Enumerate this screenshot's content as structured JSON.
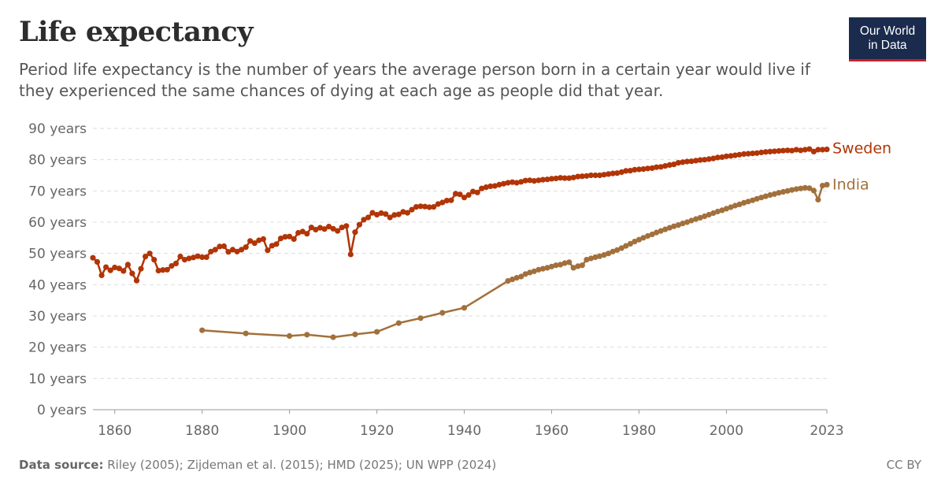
{
  "header": {
    "title": "Life expectancy",
    "subtitle": "Period life expectancy is the number of years the average person born in a certain year would live if they experienced the same chances of dying at each age as people did that year."
  },
  "logo": {
    "line1": "Our World",
    "line2": "in Data"
  },
  "footer": {
    "source_label": "Data source:",
    "source_text": "Riley (2005); Zijdeman et al. (2015); HMD (2025); UN WPP (2024)",
    "license": "CC BY"
  },
  "chart_data": {
    "type": "line",
    "xlim": [
      1855,
      2023
    ],
    "ylim": [
      0,
      90
    ],
    "x_ticks": [
      {
        "value": 1860,
        "label": "1860"
      },
      {
        "value": 1880,
        "label": "1880"
      },
      {
        "value": 1900,
        "label": "1900"
      },
      {
        "value": 1920,
        "label": "1920"
      },
      {
        "value": 1940,
        "label": "1940"
      },
      {
        "value": 1960,
        "label": "1960"
      },
      {
        "value": 1980,
        "label": "1980"
      },
      {
        "value": 2000,
        "label": "2000"
      },
      {
        "value": 2023,
        "label": "2023"
      }
    ],
    "y_ticks": [
      {
        "value": 0,
        "label": "0 years"
      },
      {
        "value": 10,
        "label": "10 years"
      },
      {
        "value": 20,
        "label": "20 years"
      },
      {
        "value": 30,
        "label": "30 years"
      },
      {
        "value": 40,
        "label": "40 years"
      },
      {
        "value": 50,
        "label": "50 years"
      },
      {
        "value": 60,
        "label": "60 years"
      },
      {
        "value": 70,
        "label": "70 years"
      },
      {
        "value": 80,
        "label": "80 years"
      },
      {
        "value": 90,
        "label": "90 years"
      }
    ],
    "grid": true,
    "series": [
      {
        "name": "Sweden",
        "color": "#b13507",
        "points": [
          [
            1855,
            48.6
          ],
          [
            1856,
            47.3
          ],
          [
            1857,
            43.0
          ],
          [
            1858,
            45.6
          ],
          [
            1859,
            44.6
          ],
          [
            1860,
            45.5
          ],
          [
            1861,
            45.2
          ],
          [
            1862,
            44.4
          ],
          [
            1863,
            46.4
          ],
          [
            1864,
            43.6
          ],
          [
            1865,
            41.3
          ],
          [
            1866,
            45.1
          ],
          [
            1867,
            49.0
          ],
          [
            1868,
            50.0
          ],
          [
            1869,
            48.0
          ],
          [
            1870,
            44.5
          ],
          [
            1871,
            44.7
          ],
          [
            1872,
            44.8
          ],
          [
            1873,
            46.0
          ],
          [
            1874,
            46.8
          ],
          [
            1875,
            49.0
          ],
          [
            1876,
            48.0
          ],
          [
            1877,
            48.4
          ],
          [
            1878,
            48.7
          ],
          [
            1879,
            49.1
          ],
          [
            1880,
            48.8
          ],
          [
            1881,
            48.8
          ],
          [
            1882,
            50.6
          ],
          [
            1883,
            51.2
          ],
          [
            1884,
            52.2
          ],
          [
            1885,
            52.3
          ],
          [
            1886,
            50.5
          ],
          [
            1887,
            51.2
          ],
          [
            1888,
            50.6
          ],
          [
            1889,
            51.2
          ],
          [
            1890,
            52.0
          ],
          [
            1891,
            54.0
          ],
          [
            1892,
            53.3
          ],
          [
            1893,
            54.2
          ],
          [
            1894,
            54.6
          ],
          [
            1895,
            51.0
          ],
          [
            1896,
            52.5
          ],
          [
            1897,
            53.0
          ],
          [
            1898,
            54.8
          ],
          [
            1899,
            55.3
          ],
          [
            1900,
            55.4
          ],
          [
            1901,
            54.6
          ],
          [
            1902,
            56.6
          ],
          [
            1903,
            57.0
          ],
          [
            1904,
            56.3
          ],
          [
            1905,
            58.3
          ],
          [
            1906,
            57.6
          ],
          [
            1907,
            58.2
          ],
          [
            1908,
            57.8
          ],
          [
            1909,
            58.6
          ],
          [
            1910,
            57.9
          ],
          [
            1911,
            57.2
          ],
          [
            1912,
            58.3
          ],
          [
            1913,
            58.8
          ],
          [
            1914,
            49.7
          ],
          [
            1915,
            56.8
          ],
          [
            1916,
            59.2
          ],
          [
            1917,
            60.8
          ],
          [
            1918,
            61.5
          ],
          [
            1919,
            63.0
          ],
          [
            1920,
            62.4
          ],
          [
            1921,
            62.9
          ],
          [
            1922,
            62.6
          ],
          [
            1923,
            61.5
          ],
          [
            1924,
            62.3
          ],
          [
            1925,
            62.5
          ],
          [
            1926,
            63.3
          ],
          [
            1927,
            63.0
          ],
          [
            1928,
            64.0
          ],
          [
            1929,
            64.9
          ],
          [
            1930,
            65.1
          ],
          [
            1931,
            65.0
          ],
          [
            1932,
            64.8
          ],
          [
            1933,
            64.9
          ],
          [
            1934,
            65.8
          ],
          [
            1935,
            66.3
          ],
          [
            1936,
            66.9
          ],
          [
            1937,
            67.0
          ],
          [
            1938,
            69.1
          ],
          [
            1939,
            68.9
          ],
          [
            1940,
            67.9
          ],
          [
            1941,
            68.7
          ],
          [
            1942,
            69.8
          ],
          [
            1943,
            69.5
          ],
          [
            1944,
            70.8
          ],
          [
            1945,
            71.2
          ],
          [
            1946,
            71.5
          ],
          [
            1947,
            71.6
          ],
          [
            1948,
            72.0
          ],
          [
            1949,
            72.3
          ],
          [
            1950,
            72.6
          ],
          [
            1951,
            72.8
          ],
          [
            1952,
            72.6
          ],
          [
            1953,
            72.9
          ],
          [
            1954,
            73.3
          ],
          [
            1955,
            73.4
          ],
          [
            1956,
            73.2
          ],
          [
            1957,
            73.4
          ],
          [
            1958,
            73.6
          ],
          [
            1959,
            73.7
          ],
          [
            1960,
            73.9
          ],
          [
            1961,
            74.0
          ],
          [
            1962,
            74.2
          ],
          [
            1963,
            74.1
          ],
          [
            1964,
            74.1
          ],
          [
            1965,
            74.3
          ],
          [
            1966,
            74.6
          ],
          [
            1967,
            74.7
          ],
          [
            1968,
            74.8
          ],
          [
            1969,
            75.0
          ],
          [
            1970,
            75.0
          ],
          [
            1971,
            75.0
          ],
          [
            1972,
            75.2
          ],
          [
            1973,
            75.4
          ],
          [
            1974,
            75.6
          ],
          [
            1975,
            75.7
          ],
          [
            1976,
            76.0
          ],
          [
            1977,
            76.4
          ],
          [
            1978,
            76.5
          ],
          [
            1979,
            76.8
          ],
          [
            1980,
            76.9
          ],
          [
            1981,
            77.0
          ],
          [
            1982,
            77.2
          ],
          [
            1983,
            77.3
          ],
          [
            1984,
            77.6
          ],
          [
            1985,
            77.7
          ],
          [
            1986,
            78.0
          ],
          [
            1987,
            78.3
          ],
          [
            1988,
            78.5
          ],
          [
            1989,
            79.0
          ],
          [
            1990,
            79.2
          ],
          [
            1991,
            79.4
          ],
          [
            1992,
            79.5
          ],
          [
            1993,
            79.7
          ],
          [
            1994,
            79.9
          ],
          [
            1995,
            80.0
          ],
          [
            1996,
            80.2
          ],
          [
            1997,
            80.4
          ],
          [
            1998,
            80.7
          ],
          [
            1999,
            80.8
          ],
          [
            2000,
            81.1
          ],
          [
            2001,
            81.2
          ],
          [
            2002,
            81.4
          ],
          [
            2003,
            81.6
          ],
          [
            2004,
            81.8
          ],
          [
            2005,
            81.9
          ],
          [
            2006,
            82.0
          ],
          [
            2007,
            82.1
          ],
          [
            2008,
            82.3
          ],
          [
            2009,
            82.5
          ],
          [
            2010,
            82.6
          ],
          [
            2011,
            82.7
          ],
          [
            2012,
            82.8
          ],
          [
            2013,
            82.9
          ],
          [
            2014,
            83.0
          ],
          [
            2015,
            82.9
          ],
          [
            2016,
            83.2
          ],
          [
            2017,
            83.0
          ],
          [
            2018,
            83.2
          ],
          [
            2019,
            83.4
          ],
          [
            2020,
            82.6
          ],
          [
            2021,
            83.2
          ],
          [
            2022,
            83.2
          ],
          [
            2023,
            83.3
          ]
        ]
      },
      {
        "name": "India",
        "color": "#a2703c",
        "points": [
          [
            1880,
            25.4
          ],
          [
            1890,
            24.4
          ],
          [
            1900,
            23.6
          ],
          [
            1904,
            24.0
          ],
          [
            1910,
            23.2
          ],
          [
            1915,
            24.1
          ],
          [
            1920,
            24.9
          ],
          [
            1925,
            27.7
          ],
          [
            1930,
            29.3
          ],
          [
            1935,
            31.0
          ],
          [
            1940,
            32.6
          ],
          [
            1950,
            41.2
          ],
          [
            1951,
            41.7
          ],
          [
            1952,
            42.2
          ],
          [
            1953,
            42.6
          ],
          [
            1954,
            43.4
          ],
          [
            1955,
            43.9
          ],
          [
            1956,
            44.3
          ],
          [
            1957,
            44.8
          ],
          [
            1958,
            45.1
          ],
          [
            1959,
            45.4
          ],
          [
            1960,
            45.8
          ],
          [
            1961,
            46.2
          ],
          [
            1962,
            46.4
          ],
          [
            1963,
            46.9
          ],
          [
            1964,
            47.2
          ],
          [
            1965,
            45.4
          ],
          [
            1966,
            45.9
          ],
          [
            1967,
            46.2
          ],
          [
            1968,
            48.0
          ],
          [
            1969,
            48.4
          ],
          [
            1970,
            48.8
          ],
          [
            1971,
            49.1
          ],
          [
            1972,
            49.5
          ],
          [
            1973,
            50.0
          ],
          [
            1974,
            50.6
          ],
          [
            1975,
            51.1
          ],
          [
            1976,
            51.7
          ],
          [
            1977,
            52.4
          ],
          [
            1978,
            53.1
          ],
          [
            1979,
            53.8
          ],
          [
            1980,
            54.4
          ],
          [
            1981,
            55.0
          ],
          [
            1982,
            55.6
          ],
          [
            1983,
            56.1
          ],
          [
            1984,
            56.7
          ],
          [
            1985,
            57.2
          ],
          [
            1986,
            57.7
          ],
          [
            1987,
            58.2
          ],
          [
            1988,
            58.7
          ],
          [
            1989,
            59.1
          ],
          [
            1990,
            59.6
          ],
          [
            1991,
            60.0
          ],
          [
            1992,
            60.5
          ],
          [
            1993,
            61.0
          ],
          [
            1994,
            61.4
          ],
          [
            1995,
            61.9
          ],
          [
            1996,
            62.4
          ],
          [
            1997,
            62.9
          ],
          [
            1998,
            63.4
          ],
          [
            1999,
            63.8
          ],
          [
            2000,
            64.3
          ],
          [
            2001,
            64.8
          ],
          [
            2002,
            65.3
          ],
          [
            2003,
            65.7
          ],
          [
            2004,
            66.2
          ],
          [
            2005,
            66.6
          ],
          [
            2006,
            67.0
          ],
          [
            2007,
            67.5
          ],
          [
            2008,
            67.9
          ],
          [
            2009,
            68.3
          ],
          [
            2010,
            68.7
          ],
          [
            2011,
            69.0
          ],
          [
            2012,
            69.4
          ],
          [
            2013,
            69.7
          ],
          [
            2014,
            70.0
          ],
          [
            2015,
            70.3
          ],
          [
            2016,
            70.6
          ],
          [
            2017,
            70.8
          ],
          [
            2018,
            71.0
          ],
          [
            2019,
            70.9
          ],
          [
            2020,
            70.1
          ],
          [
            2021,
            67.2
          ],
          [
            2022,
            71.7
          ],
          [
            2023,
            72.0
          ]
        ]
      }
    ]
  }
}
